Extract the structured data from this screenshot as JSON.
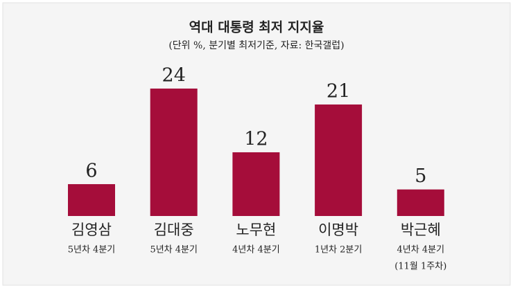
{
  "chart_data": {
    "type": "bar",
    "title": "역대 대통령 최저 지지율",
    "subtitle": "(단위 %, 분기별 최저기준, 자료: 한국갤럽)",
    "categories": [
      "김영삼",
      "김대중",
      "노무현",
      "이명박",
      "박근혜"
    ],
    "sublabels": [
      [
        "5년차 4분기"
      ],
      [
        "5년차 4분기"
      ],
      [
        "4년차 4분기"
      ],
      [
        "1년차 2분기"
      ],
      [
        "4년차 4분기",
        "(11월 1주차)"
      ]
    ],
    "values": [
      6,
      24,
      12,
      21,
      5
    ],
    "color": "#a50d3a"
  }
}
